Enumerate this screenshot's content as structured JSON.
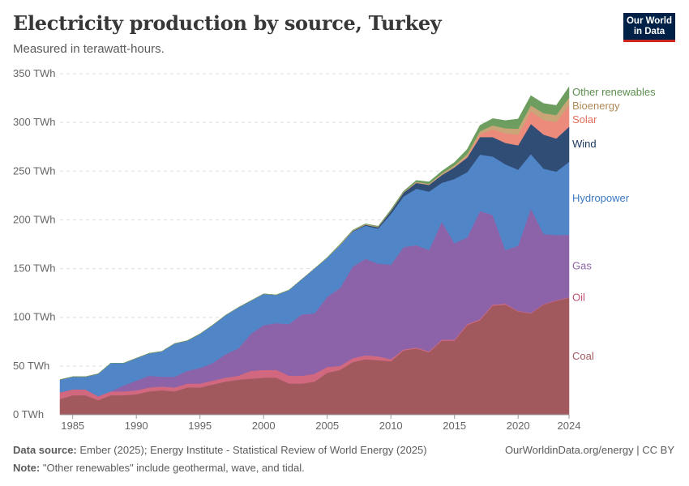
{
  "title": "Electricity production by source, Turkey",
  "subtitle": "Measured in terawatt-hours.",
  "logo": {
    "line1": "Our World",
    "line2": "in Data"
  },
  "footer": {
    "source_label": "Data source:",
    "source_text": "Ember (2025); Energy Institute - Statistical Review of World Energy (2025)",
    "note_label": "Note:",
    "note_text": "\"Other renewables\" include geothermal, wave, and tidal.",
    "link": "OurWorldinData.org/energy | CC BY"
  },
  "chart_data": {
    "type": "area",
    "stacked": true,
    "x": [
      1984,
      1985,
      1986,
      1987,
      1988,
      1989,
      1990,
      1991,
      1992,
      1993,
      1994,
      1995,
      1996,
      1997,
      1998,
      1999,
      2000,
      2001,
      2002,
      2003,
      2004,
      2005,
      2006,
      2007,
      2008,
      2009,
      2010,
      2011,
      2012,
      2013,
      2014,
      2015,
      2016,
      2017,
      2018,
      2019,
      2020,
      2021,
      2022,
      2023,
      2024
    ],
    "xlim": [
      1984,
      2024
    ],
    "ylim": [
      0,
      350
    ],
    "x_ticks": [
      "1985",
      "1990",
      "1995",
      "2000",
      "2005",
      "2010",
      "2015",
      "2020",
      "2024"
    ],
    "x_tick_values": [
      1985,
      1990,
      1995,
      2000,
      2005,
      2010,
      2015,
      2020,
      2024
    ],
    "y_ticks": [
      "0 TWh",
      "50 TWh",
      "100 TWh",
      "150 TWh",
      "200 TWh",
      "250 TWh",
      "300 TWh",
      "350 TWh"
    ],
    "y_tick_values": [
      0,
      50,
      100,
      150,
      200,
      250,
      300,
      350
    ],
    "series": [
      {
        "name": "Coal",
        "color": "#a2595d",
        "label_color": "#a2595d",
        "values": [
          16,
          20,
          20,
          15,
          20,
          20,
          21,
          24,
          25,
          24,
          28,
          28,
          31,
          34,
          36,
          37,
          38,
          38,
          32,
          32,
          34,
          43,
          46,
          54,
          57,
          56,
          55,
          66,
          68,
          64,
          76,
          76,
          92,
          97,
          112,
          113,
          106,
          104,
          113,
          117,
          120
        ]
      },
      {
        "name": "Oil",
        "color": "#d1687f",
        "label_color": "#c0506e",
        "values": [
          7,
          6,
          6,
          4,
          4,
          4,
          4,
          4,
          4,
          4,
          4,
          4,
          4,
          4,
          4,
          8,
          8,
          8,
          8,
          8,
          8,
          6,
          4,
          4,
          4,
          4,
          2,
          1,
          1,
          1,
          1,
          1,
          1,
          1,
          1,
          1,
          0.5,
          0.5,
          0.5,
          0.5,
          0.5
        ]
      },
      {
        "name": "Gas",
        "color": "#8c62a8",
        "label_color": "#8c62a8",
        "values": [
          0,
          0,
          0,
          0,
          0,
          6,
          10,
          12,
          10,
          11,
          13,
          16,
          18,
          24,
          28,
          38,
          46,
          48,
          53,
          63,
          62,
          72,
          80,
          94,
          99,
          95,
          97,
          105,
          105,
          104,
          121,
          99,
          89,
          111,
          92,
          55,
          67,
          107,
          72,
          67,
          64
        ]
      },
      {
        "name": "Hydropower",
        "color": "#5086c8",
        "label_color": "#3b78c3",
        "values": [
          13,
          13,
          13,
          23,
          29,
          23,
          23,
          23,
          26,
          34,
          31,
          35,
          39,
          40,
          42,
          34,
          32,
          29,
          35,
          36,
          46,
          40,
          44,
          36,
          34,
          36,
          52,
          52,
          58,
          60,
          40,
          66,
          67,
          58,
          60,
          88,
          78,
          56,
          67,
          65,
          75
        ]
      },
      {
        "name": "Wind",
        "color": "#304d76",
        "label_color": "#18355c",
        "values": [
          0,
          0,
          0,
          0,
          0,
          0,
          0,
          0,
          0,
          0,
          0,
          0,
          0,
          0,
          0,
          0,
          0,
          0,
          0,
          0,
          0,
          0,
          0,
          0.5,
          1,
          1.5,
          3,
          4,
          6,
          7,
          8,
          12,
          15,
          18,
          20,
          22,
          25,
          31,
          35,
          34,
          36
        ]
      },
      {
        "name": "Solar",
        "color": "#ec8b7c",
        "label_color": "#e56e5a",
        "values": [
          0,
          0,
          0,
          0,
          0,
          0,
          0,
          0,
          0,
          0,
          0,
          0,
          0,
          0,
          0,
          0,
          0,
          0,
          0,
          0,
          0,
          0,
          0,
          0,
          0,
          0,
          0,
          0,
          0,
          0,
          0,
          0,
          1,
          3,
          8,
          10,
          11,
          13,
          15,
          17,
          22
        ]
      },
      {
        "name": "Bioenergy",
        "color": "#c9a578",
        "label_color": "#b08a5a",
        "values": [
          0,
          0,
          0,
          0,
          0,
          0,
          0,
          0,
          0,
          0,
          0,
          0,
          0,
          0,
          0,
          0,
          0,
          0,
          0,
          0,
          0,
          0,
          0.5,
          0.5,
          0.5,
          0.5,
          0.5,
          0.5,
          1,
          1,
          1.5,
          2,
          2.5,
          3,
          4,
          5,
          6,
          6,
          7,
          7,
          8
        ]
      },
      {
        "name": "Other renewables",
        "color": "#6d9e60",
        "label_color": "#5a8d4d",
        "values": [
          0,
          0,
          0,
          0,
          0,
          0,
          0,
          0,
          0,
          0,
          0,
          0,
          0,
          0,
          0,
          0,
          0,
          0,
          0,
          0,
          0,
          0.5,
          0.5,
          0.5,
          0.5,
          0.5,
          1,
          1,
          1.5,
          2,
          2.5,
          3,
          5,
          6,
          7,
          8,
          10,
          10,
          10,
          10,
          11
        ]
      }
    ]
  }
}
